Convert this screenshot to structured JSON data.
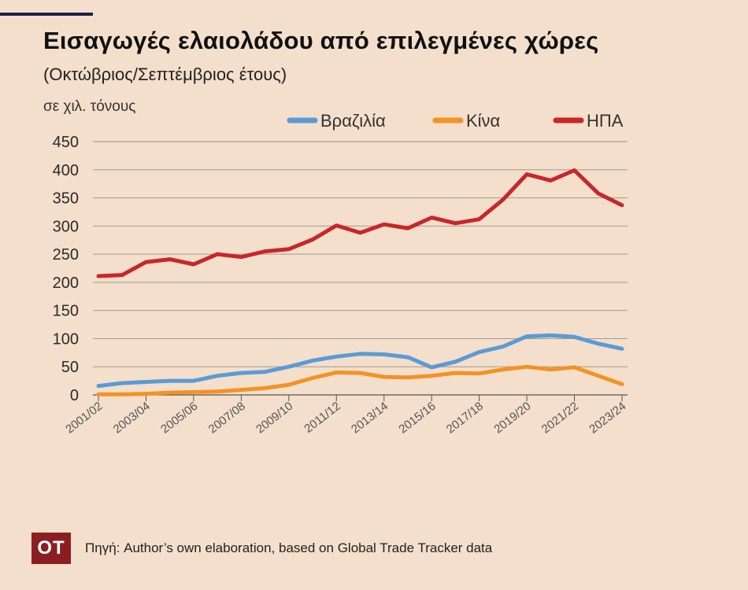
{
  "title": "Εισαγωγές ελαιολάδου από επιλεγμένες χώρες",
  "subtitle": "(Οκτώβριος/Σεπτέμβριος έτους)",
  "unit": "σε χιλ. τόνους",
  "logo": "ΟΤ",
  "source": "Πηγή: Author’s own elaboration, based on Global Trade Tracker data",
  "chart_data": {
    "type": "line",
    "title": "Εισαγωγές ελαιολάδου από επιλεγμένες χώρες",
    "subtitle": "(Οκτώβριος/Σεπτέμβριος έτους)",
    "ylabel": "σε χιλ. τόνους",
    "xlabel": "",
    "ylim": [
      0,
      450
    ],
    "yticks": [
      0,
      50,
      100,
      150,
      200,
      250,
      300,
      350,
      400,
      450
    ],
    "grid": true,
    "legend": "top-right",
    "x": [
      "2001/02",
      "2002/03",
      "2003/04",
      "2004/05",
      "2005/06",
      "2006/07",
      "2007/08",
      "2008/09",
      "2009/10",
      "2010/11",
      "2011/12",
      "2012/13",
      "2013/14",
      "2014/15",
      "2015/16",
      "2016/17",
      "2017/18",
      "2018/19",
      "2019/20",
      "2020/21",
      "2021/22",
      "2022/23",
      "2023/24"
    ],
    "xtick_labels": [
      "2001/02",
      "2003/04",
      "2005/06",
      "2007/08",
      "2009/10",
      "2011/12",
      "2013/14",
      "2015/16",
      "2017/18",
      "2019/20",
      "2021/22",
      "2023/24"
    ],
    "series": [
      {
        "name": "Βραζιλία",
        "color": "#5b9bd5",
        "values": [
          16,
          21,
          23,
          25,
          25,
          34,
          39,
          41,
          50,
          61,
          68,
          73,
          72,
          67,
          49,
          59,
          76,
          86,
          104,
          106,
          103,
          91,
          82
        ]
      },
      {
        "name": "Κίνα",
        "color": "#f39325",
        "values": [
          1,
          1,
          2,
          4,
          5,
          6,
          9,
          12,
          18,
          30,
          40,
          39,
          32,
          31,
          34,
          39,
          38,
          45,
          50,
          45,
          49,
          34,
          19
        ]
      },
      {
        "name": "ΗΠΑ",
        "color": "#c8262b",
        "values": [
          211,
          213,
          236,
          241,
          232,
          250,
          245,
          255,
          259,
          276,
          301,
          288,
          303,
          296,
          315,
          305,
          312,
          347,
          392,
          381,
          399,
          358,
          337
        ]
      }
    ]
  }
}
